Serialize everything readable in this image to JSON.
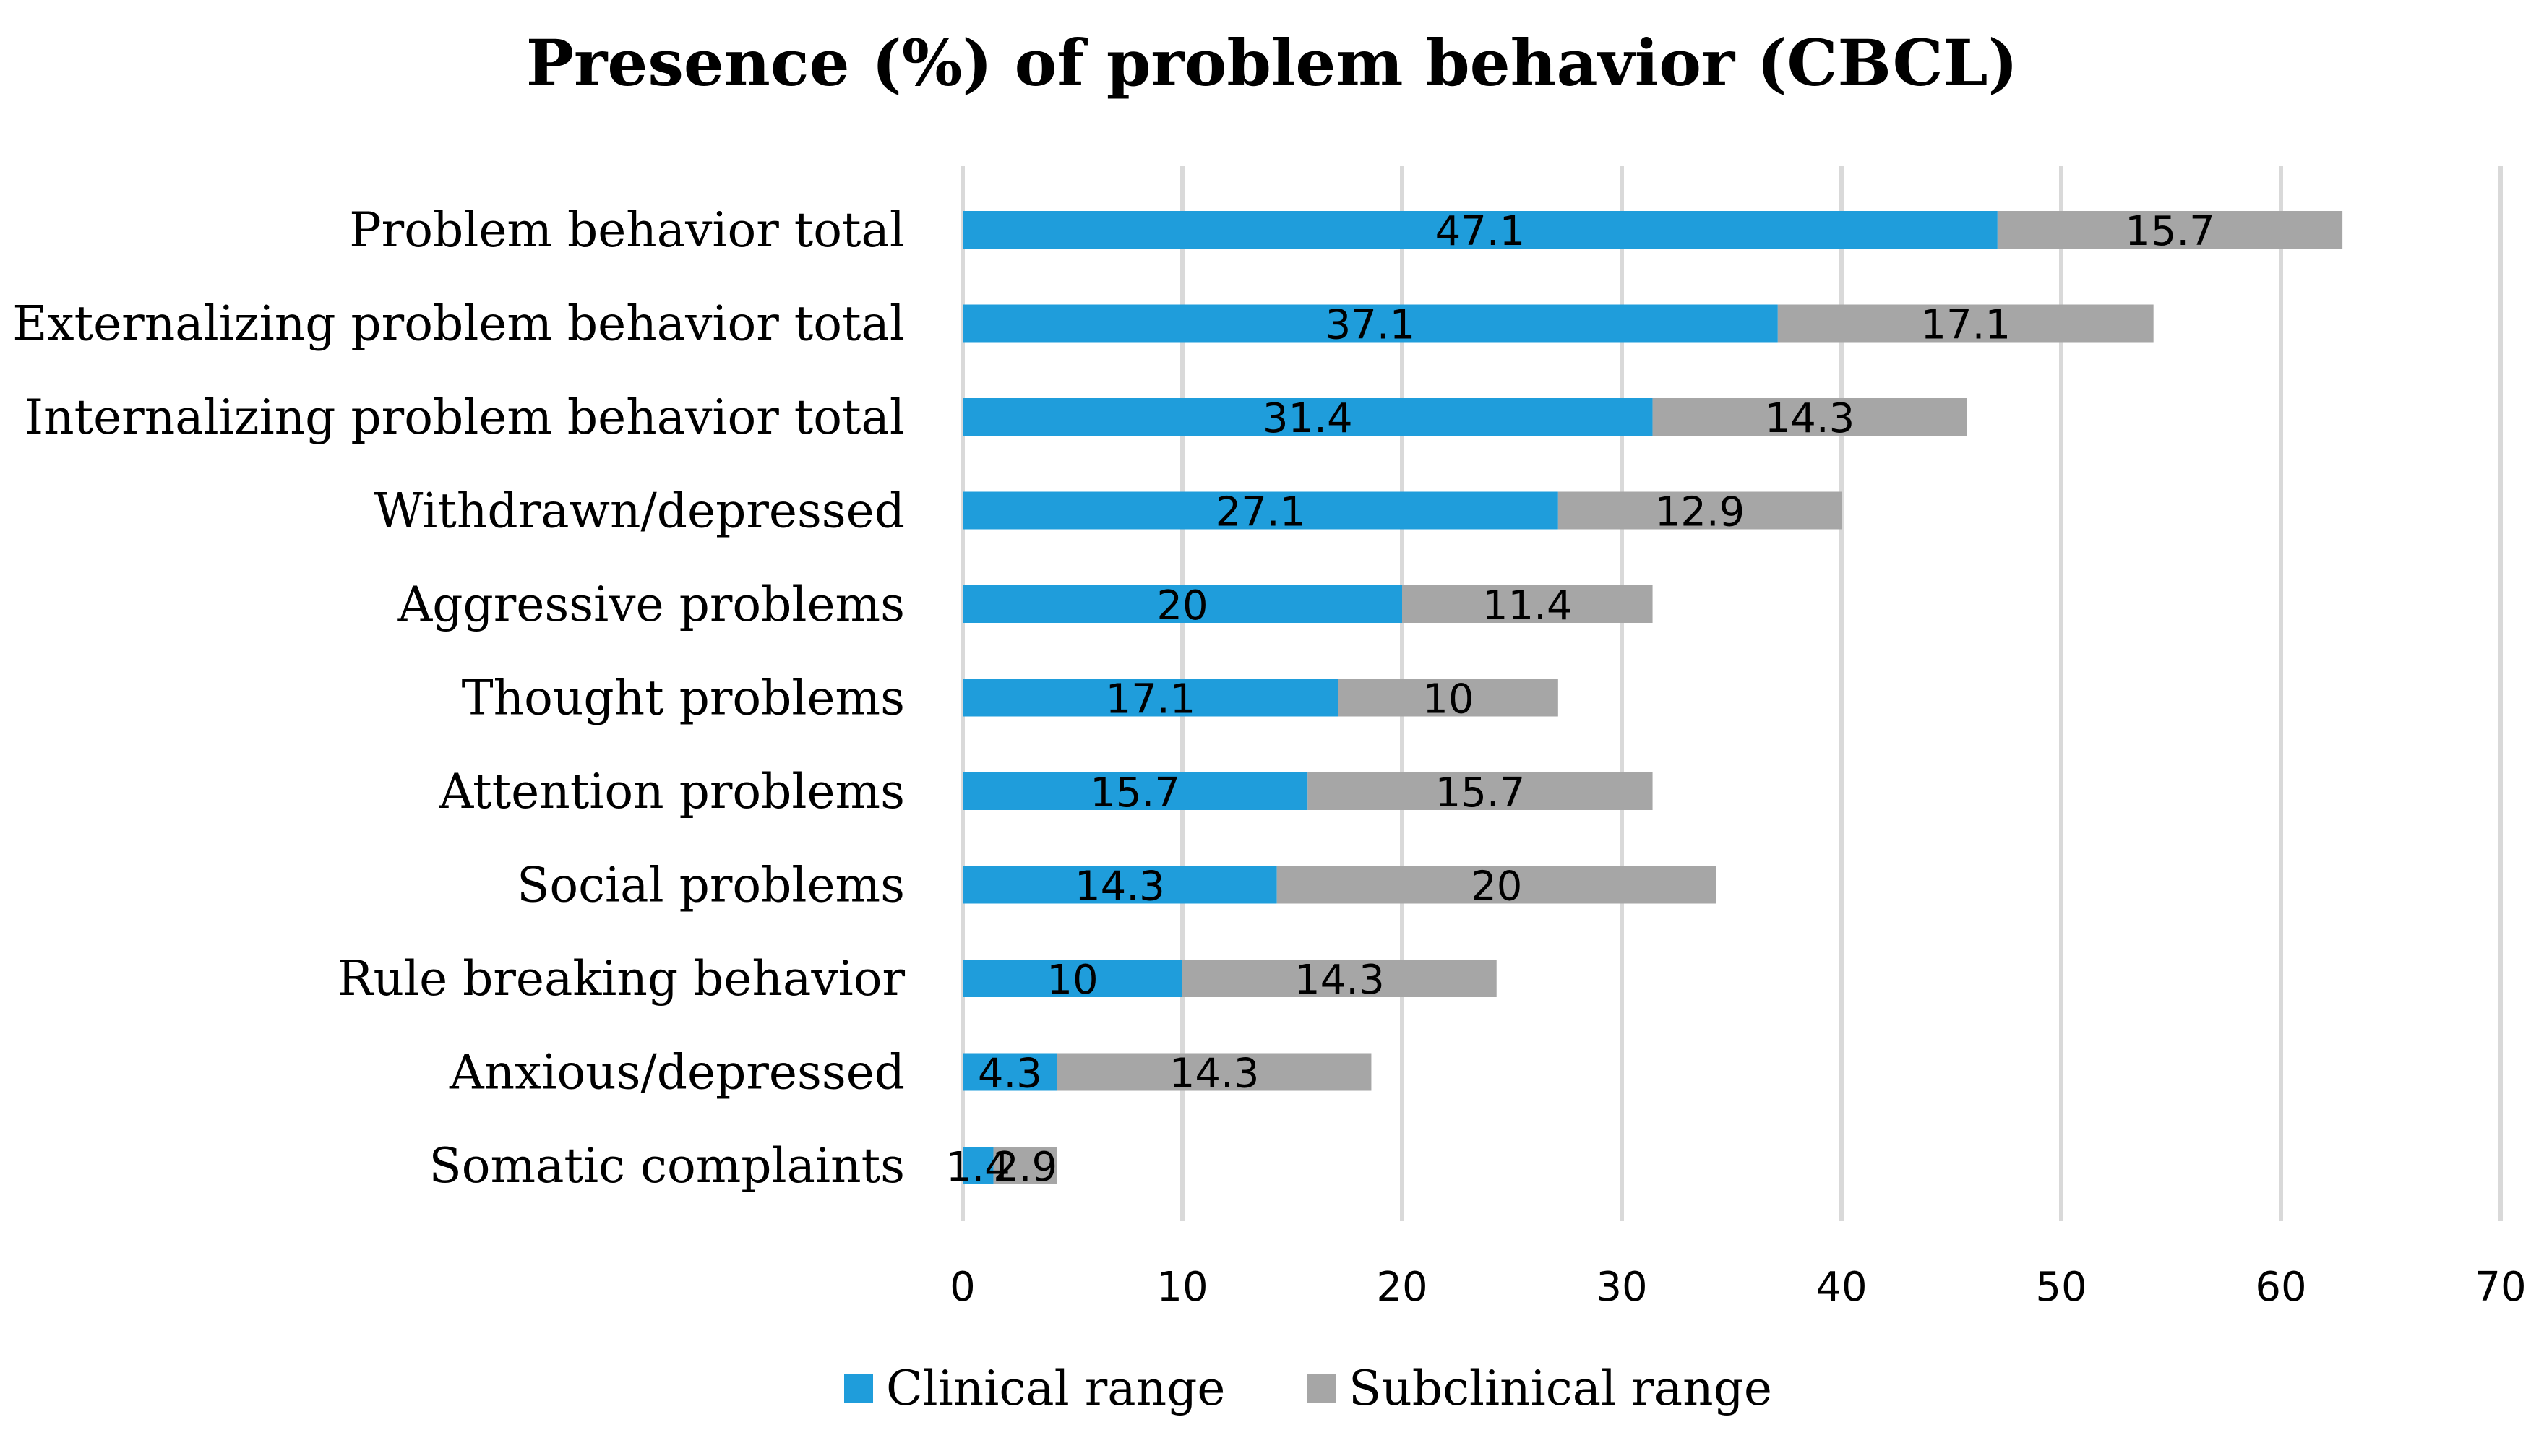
{
  "chart_data": {
    "type": "bar",
    "orientation": "horizontal",
    "stacked": true,
    "title": "Presence (%) of problem behavior (CBCL)",
    "xlabel": "",
    "ylabel": "",
    "xlim": [
      0,
      70
    ],
    "xticks": [
      0,
      10,
      20,
      30,
      40,
      50,
      60,
      70
    ],
    "grid": true,
    "legend_position": "bottom",
    "categories": [
      "Problem behavior total",
      "Externalizing problem behavior total",
      "Internalizing problem behavior total",
      "Withdrawn/depressed",
      "Aggressive problems",
      "Thought problems",
      "Attention problems",
      "Social problems",
      "Rule breaking behavior",
      "Anxious/depressed",
      "Somatic complaints"
    ],
    "series": [
      {
        "name": "Clinical range",
        "color": "#1f9ddb",
        "values": [
          47.1,
          37.1,
          31.4,
          27.1,
          20,
          17.1,
          15.7,
          14.3,
          10,
          4.3,
          1.4
        ]
      },
      {
        "name": "Subclinical range",
        "color": "#a6a6a6",
        "values": [
          15.7,
          17.1,
          14.3,
          12.9,
          11.4,
          10,
          15.7,
          20,
          14.3,
          14.3,
          2.9
        ]
      }
    ]
  }
}
